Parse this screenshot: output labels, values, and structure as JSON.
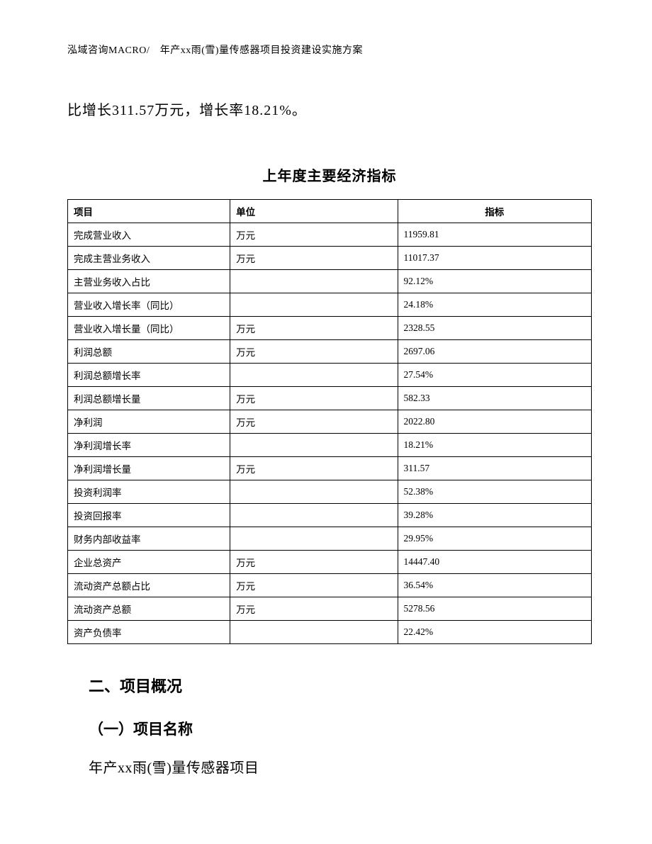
{
  "header": {
    "text": "泓域咨询MACRO/　年产xx雨(雪)量传感器项目投资建设实施方案"
  },
  "intro": {
    "text": "比增长311.57万元，增长率18.21%。"
  },
  "table": {
    "title": "上年度主要经济指标",
    "columns": {
      "item": "项目",
      "unit": "单位",
      "value": "指标"
    },
    "rows": [
      {
        "item": "完成营业收入",
        "unit": "万元",
        "value": "11959.81"
      },
      {
        "item": "完成主营业务收入",
        "unit": "万元",
        "value": "11017.37"
      },
      {
        "item": "主营业务收入占比",
        "unit": "",
        "value": "92.12%"
      },
      {
        "item": "营业收入增长率（同比）",
        "unit": "",
        "value": "24.18%"
      },
      {
        "item": "营业收入增长量（同比）",
        "unit": "万元",
        "value": "2328.55"
      },
      {
        "item": "利润总额",
        "unit": "万元",
        "value": "2697.06"
      },
      {
        "item": "利润总额增长率",
        "unit": "",
        "value": "27.54%"
      },
      {
        "item": "利润总额增长量",
        "unit": "万元",
        "value": "582.33"
      },
      {
        "item": "净利润",
        "unit": "万元",
        "value": "2022.80"
      },
      {
        "item": "净利润增长率",
        "unit": "",
        "value": "18.21%"
      },
      {
        "item": "净利润增长量",
        "unit": "万元",
        "value": "311.57"
      },
      {
        "item": "投资利润率",
        "unit": "",
        "value": "52.38%"
      },
      {
        "item": "投资回报率",
        "unit": "",
        "value": "39.28%"
      },
      {
        "item": "财务内部收益率",
        "unit": "",
        "value": "29.95%"
      },
      {
        "item": "企业总资产",
        "unit": "万元",
        "value": "14447.40"
      },
      {
        "item": "流动资产总额占比",
        "unit": "万元",
        "value": "36.54%"
      },
      {
        "item": "流动资产总额",
        "unit": "万元",
        "value": "5278.56"
      },
      {
        "item": "资产负债率",
        "unit": "",
        "value": "22.42%"
      }
    ]
  },
  "section": {
    "heading": "二、项目概况",
    "sub_heading": "（一）项目名称",
    "body": "年产xx雨(雪)量传感器项目"
  }
}
